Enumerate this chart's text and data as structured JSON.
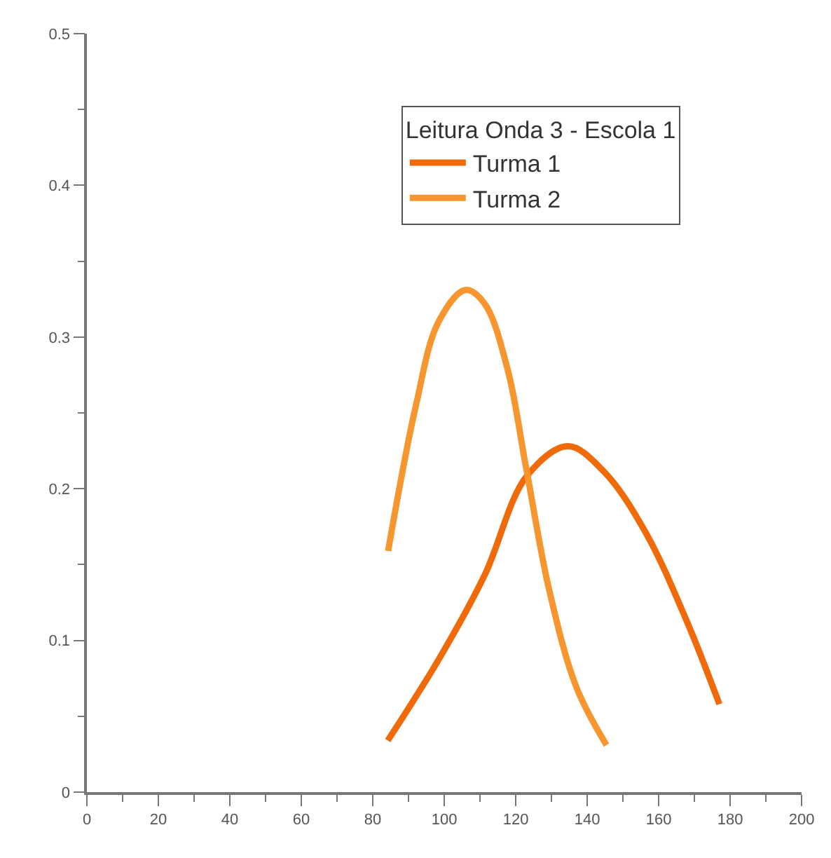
{
  "chart_data": {
    "type": "line",
    "legend_title": "Leitura Onda 3 - Escola 1",
    "series": [
      {
        "name": "Turma 1",
        "color": "#f06a0a",
        "x": [
          84.2,
          98.6,
          111.3,
          123,
          134.6,
          144.8,
          156.4,
          168,
          177
        ],
        "values": [
          0.034,
          0.088,
          0.143,
          0.208,
          0.228,
          0.211,
          0.171,
          0.112,
          0.058
        ]
      },
      {
        "name": "Turma 2",
        "color": "#f7962e",
        "x": [
          84.3,
          92,
          98.4,
          105.9,
          111.3,
          117.7,
          122.9,
          129.3,
          137,
          145.4
        ],
        "values": [
          0.159,
          0.254,
          0.31,
          0.331,
          0.322,
          0.279,
          0.214,
          0.134,
          0.069,
          0.031
        ]
      }
    ],
    "xlim": [
      0,
      200
    ],
    "xticks": [
      0,
      20,
      40,
      60,
      80,
      100,
      120,
      140,
      160,
      180,
      200
    ],
    "ylim": [
      0,
      0.5
    ],
    "yticks": [
      0,
      0.1,
      0.2,
      0.3,
      0.4,
      0.5
    ],
    "legend": "top right",
    "marker": "none",
    "line_style": "solid"
  }
}
